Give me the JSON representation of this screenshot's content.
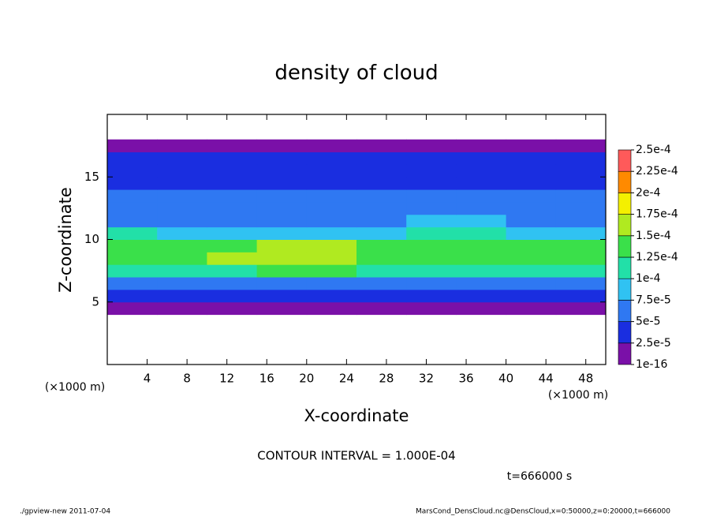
{
  "chart_data": {
    "type": "heatmap",
    "title": "density of cloud",
    "x_label": "X-coordinate",
    "y_label": "Z-coordinate",
    "x_unit": "(×1000 m)",
    "y_unit": "(×1000 m)",
    "contour_note": "CONTOUR INTERVAL = 1.000E-04",
    "time_note": "t=666000 s",
    "footer_left": "./gpview-new  2011-07-04",
    "footer_right": "MarsCond_DensCloud.nc@DensCloud,x=0:50000,z=0:20000,t=666000",
    "xlim": [
      0,
      50
    ],
    "ylim": [
      0,
      20
    ],
    "xticks": [
      4,
      8,
      12,
      16,
      20,
      24,
      28,
      32,
      36,
      40,
      44,
      48
    ],
    "yticks": [
      5,
      10,
      15
    ],
    "x": [
      2.5,
      7.5,
      12.5,
      17.5,
      22.5,
      27.5,
      32.5,
      37.5,
      42.5,
      47.5
    ],
    "y": [
      0.5,
      1.5,
      2.5,
      3.5,
      4.5,
      5.5,
      6.5,
      7.5,
      8.5,
      9.5,
      10.5,
      11.5,
      12.5,
      13.5,
      14.5,
      15.5,
      16.5,
      17.5,
      18.5,
      19.5
    ],
    "values": [
      [
        null,
        null,
        null,
        null,
        null,
        null,
        null,
        null,
        null,
        null
      ],
      [
        null,
        null,
        null,
        null,
        null,
        null,
        null,
        null,
        null,
        null
      ],
      [
        null,
        null,
        null,
        null,
        null,
        null,
        null,
        null,
        null,
        null
      ],
      [
        null,
        null,
        null,
        null,
        null,
        null,
        null,
        null,
        null,
        null
      ],
      [
        1e-05,
        1e-05,
        1e-05,
        1e-05,
        1e-05,
        1e-05,
        1e-05,
        1e-05,
        1e-05,
        1e-05
      ],
      [
        3e-05,
        3e-05,
        3e-05,
        3e-05,
        3e-05,
        3e-05,
        3e-05,
        3e-05,
        3e-05,
        3e-05
      ],
      [
        7e-05,
        7e-05,
        7e-05,
        7e-05,
        7e-05,
        7e-05,
        7e-05,
        7e-05,
        7e-05,
        7e-05
      ],
      [
        0.00012,
        0.00012,
        0.00012,
        0.00013,
        0.00013,
        0.00012,
        0.00012,
        0.00012,
        0.00012,
        0.00012
      ],
      [
        0.00014,
        0.00014,
        0.00015,
        0.00016,
        0.00016,
        0.00014,
        0.00014,
        0.00014,
        0.00014,
        0.00014
      ],
      [
        0.00013,
        0.00013,
        0.00013,
        0.00015,
        0.00015,
        0.00013,
        0.00014,
        0.00014,
        0.00013,
        0.00013
      ],
      [
        0.0001,
        9e-05,
        9e-05,
        9e-05,
        9e-05,
        9e-05,
        0.00011,
        0.00011,
        9e-05,
        9e-05
      ],
      [
        6e-05,
        6e-05,
        6e-05,
        6e-05,
        6e-05,
        6e-05,
        8e-05,
        8e-05,
        6e-05,
        6e-05
      ],
      [
        5.5e-05,
        5.5e-05,
        5.5e-05,
        5.5e-05,
        5.5e-05,
        5.5e-05,
        5.5e-05,
        5.5e-05,
        5.5e-05,
        5.5e-05
      ],
      [
        5e-05,
        5e-05,
        5e-05,
        5e-05,
        5e-05,
        5e-05,
        5e-05,
        5e-05,
        5e-05,
        5e-05
      ],
      [
        4.5e-05,
        4.5e-05,
        4.5e-05,
        4.5e-05,
        4.5e-05,
        4.5e-05,
        4.5e-05,
        4.5e-05,
        4.5e-05,
        4.5e-05
      ],
      [
        4e-05,
        4e-05,
        4e-05,
        4e-05,
        4e-05,
        4e-05,
        4e-05,
        4e-05,
        4e-05,
        4e-05
      ],
      [
        3e-05,
        3e-05,
        3e-05,
        3e-05,
        3e-05,
        3e-05,
        3e-05,
        3e-05,
        3e-05,
        3e-05
      ],
      [
        1e-05,
        1e-05,
        1e-05,
        1e-05,
        1e-05,
        1e-05,
        1e-05,
        1e-05,
        1e-05,
        1e-05
      ],
      [
        null,
        null,
        null,
        null,
        null,
        null,
        null,
        null,
        null,
        null
      ],
      [
        null,
        null,
        null,
        null,
        null,
        null,
        null,
        null,
        null,
        null
      ]
    ],
    "levels": [
      {
        "value": 1e-16,
        "label": "1e-16"
      },
      {
        "value": 2.5e-05,
        "label": "2.5e-5"
      },
      {
        "value": 5e-05,
        "label": "5e-5"
      },
      {
        "value": 7.5e-05,
        "label": "7.5e-5"
      },
      {
        "value": 0.0001,
        "label": "1e-4"
      },
      {
        "value": 0.000125,
        "label": "1.25e-4"
      },
      {
        "value": 0.00015,
        "label": "1.5e-4"
      },
      {
        "value": 0.000175,
        "label": "1.75e-4"
      },
      {
        "value": 0.0002,
        "label": "2e-4"
      },
      {
        "value": 0.000225,
        "label": "2.25e-4"
      },
      {
        "value": 0.00025,
        "label": "2.5e-4"
      }
    ],
    "colors": [
      "#7a10a8",
      "#1a2ee0",
      "#2f78f2",
      "#30c2f2",
      "#22e0a8",
      "#3ae04a",
      "#b0ea20",
      "#f4f000",
      "#ff8a00",
      "#ff5a5a"
    ]
  }
}
